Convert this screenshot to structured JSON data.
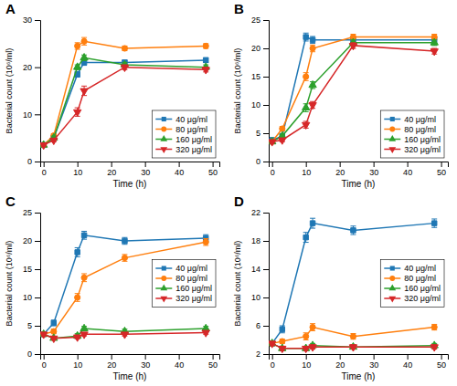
{
  "chart_data": [
    {
      "type": "line",
      "title": "A",
      "xlabel": "Time (h)",
      "ylabel": "Bacterial count (10⁶/ml)",
      "x": [
        0,
        3,
        10,
        12,
        24,
        48
      ],
      "series": [
        {
          "name": "40 μg/ml",
          "marker": "square",
          "values": [
            3.5,
            5.0,
            18.5,
            21.0,
            21.0,
            21.5
          ],
          "errors": [
            0.3,
            0.4,
            0.6,
            0.6,
            0.5,
            0.5
          ]
        },
        {
          "name": "80 μg/ml",
          "marker": "circle",
          "values": [
            3.5,
            5.5,
            24.5,
            25.5,
            24.0,
            24.5
          ],
          "errors": [
            0.3,
            0.4,
            0.7,
            0.8,
            0.5,
            0.5
          ]
        },
        {
          "name": "160 μg/ml",
          "marker": "triangle-up",
          "values": [
            3.5,
            5.0,
            20.0,
            22.0,
            20.5,
            20.0
          ],
          "errors": [
            0.3,
            0.4,
            0.5,
            0.6,
            0.5,
            0.5
          ]
        },
        {
          "name": "320 μg/ml",
          "marker": "triangle-down",
          "values": [
            3.5,
            4.5,
            10.5,
            15.0,
            20.0,
            19.5
          ],
          "errors": [
            0.3,
            0.3,
            0.9,
            1.0,
            0.5,
            0.5
          ]
        }
      ],
      "xlim": [
        -1,
        52
      ],
      "xticks": [
        0,
        10,
        20,
        30,
        40,
        50
      ],
      "ylim": [
        0,
        30
      ],
      "yticks": [
        0,
        10,
        20,
        30
      ],
      "grid": false,
      "legend": "lower right"
    },
    {
      "type": "line",
      "title": "B",
      "xlabel": "Time (h)",
      "ylabel": "Bacterial count (10⁶/ml)",
      "x": [
        0,
        3,
        10,
        12,
        24,
        48
      ],
      "series": [
        {
          "name": "40 μg/ml",
          "marker": "square",
          "values": [
            3.8,
            4.5,
            22.0,
            21.5,
            21.5,
            21.5
          ],
          "errors": [
            0.3,
            0.4,
            0.7,
            0.6,
            0.5,
            0.5
          ]
        },
        {
          "name": "80 μg/ml",
          "marker": "circle",
          "values": [
            3.5,
            5.8,
            15.0,
            20.0,
            22.0,
            22.0
          ],
          "errors": [
            0.3,
            0.4,
            0.7,
            0.6,
            0.5,
            0.5
          ]
        },
        {
          "name": "160 μg/ml",
          "marker": "triangle-up",
          "values": [
            3.5,
            4.5,
            9.5,
            13.5,
            21.0,
            21.0
          ],
          "errors": [
            0.3,
            0.3,
            0.7,
            0.6,
            0.5,
            0.5
          ]
        },
        {
          "name": "320 μg/ml",
          "marker": "triangle-down",
          "values": [
            3.5,
            3.8,
            6.5,
            10.0,
            20.5,
            19.5
          ],
          "errors": [
            0.3,
            0.3,
            0.6,
            0.6,
            0.5,
            0.5
          ]
        }
      ],
      "xlim": [
        -1,
        52
      ],
      "xticks": [
        0,
        10,
        20,
        30,
        40,
        50
      ],
      "ylim": [
        0,
        25
      ],
      "yticks": [
        0,
        5,
        10,
        15,
        20,
        25
      ],
      "grid": false,
      "legend": "lower right"
    },
    {
      "type": "line",
      "title": "C",
      "xlabel": "Time (h)",
      "ylabel": "Bacterial count (10⁶/ml)",
      "x": [
        0,
        3,
        10,
        12,
        24,
        48
      ],
      "series": [
        {
          "name": "40 μg/ml",
          "marker": "square",
          "values": [
            3.5,
            5.5,
            18.0,
            21.0,
            20.0,
            20.5
          ],
          "errors": [
            0.3,
            0.5,
            0.8,
            0.7,
            0.6,
            0.6
          ]
        },
        {
          "name": "80 μg/ml",
          "marker": "circle",
          "values": [
            3.5,
            4.0,
            10.0,
            13.5,
            17.0,
            19.8
          ],
          "errors": [
            0.3,
            0.4,
            0.7,
            0.7,
            0.6,
            0.6
          ]
        },
        {
          "name": "160 μg/ml",
          "marker": "triangle-up",
          "values": [
            3.5,
            2.8,
            3.2,
            4.5,
            4.0,
            4.5
          ],
          "errors": [
            0.3,
            0.3,
            0.4,
            0.4,
            0.4,
            0.4
          ]
        },
        {
          "name": "320 μg/ml",
          "marker": "triangle-down",
          "values": [
            3.5,
            2.8,
            3.0,
            3.5,
            3.5,
            3.8
          ],
          "errors": [
            0.3,
            0.3,
            0.3,
            0.3,
            0.3,
            0.3
          ]
        }
      ],
      "xlim": [
        -1,
        52
      ],
      "xticks": [
        0,
        10,
        20,
        30,
        40,
        50
      ],
      "ylim": [
        0,
        25
      ],
      "yticks": [
        0,
        5,
        10,
        15,
        20,
        25
      ],
      "grid": false,
      "legend": "center right"
    },
    {
      "type": "line",
      "title": "D",
      "xlabel": "Time (h)",
      "ylabel": "Bacterial count (10⁶/ml)",
      "x": [
        0,
        3,
        10,
        12,
        24,
        48
      ],
      "series": [
        {
          "name": "40 μg/ml",
          "marker": "square",
          "values": [
            3.5,
            5.5,
            18.5,
            20.5,
            19.5,
            20.5
          ],
          "errors": [
            0.3,
            0.5,
            0.7,
            0.7,
            0.6,
            0.6
          ]
        },
        {
          "name": "80 μg/ml",
          "marker": "circle",
          "values": [
            3.5,
            3.8,
            4.5,
            5.8,
            4.5,
            5.8
          ],
          "errors": [
            0.3,
            0.3,
            0.5,
            0.5,
            0.4,
            0.4
          ]
        },
        {
          "name": "160 μg/ml",
          "marker": "triangle-up",
          "values": [
            3.5,
            2.8,
            2.8,
            3.2,
            3.0,
            3.2
          ],
          "errors": [
            0.3,
            0.3,
            0.3,
            0.3,
            0.3,
            0.3
          ]
        },
        {
          "name": "320 μg/ml",
          "marker": "triangle-down",
          "values": [
            3.5,
            2.8,
            2.8,
            3.0,
            3.0,
            3.0
          ],
          "errors": [
            0.3,
            0.3,
            0.3,
            0.3,
            0.3,
            0.3
          ]
        }
      ],
      "xlim": [
        -1,
        52
      ],
      "xticks": [
        0,
        10,
        20,
        30,
        40,
        50
      ],
      "ylim": [
        2,
        22
      ],
      "yticks": [
        2,
        6,
        10,
        14,
        18,
        22
      ],
      "grid": false,
      "legend": "center right"
    }
  ]
}
